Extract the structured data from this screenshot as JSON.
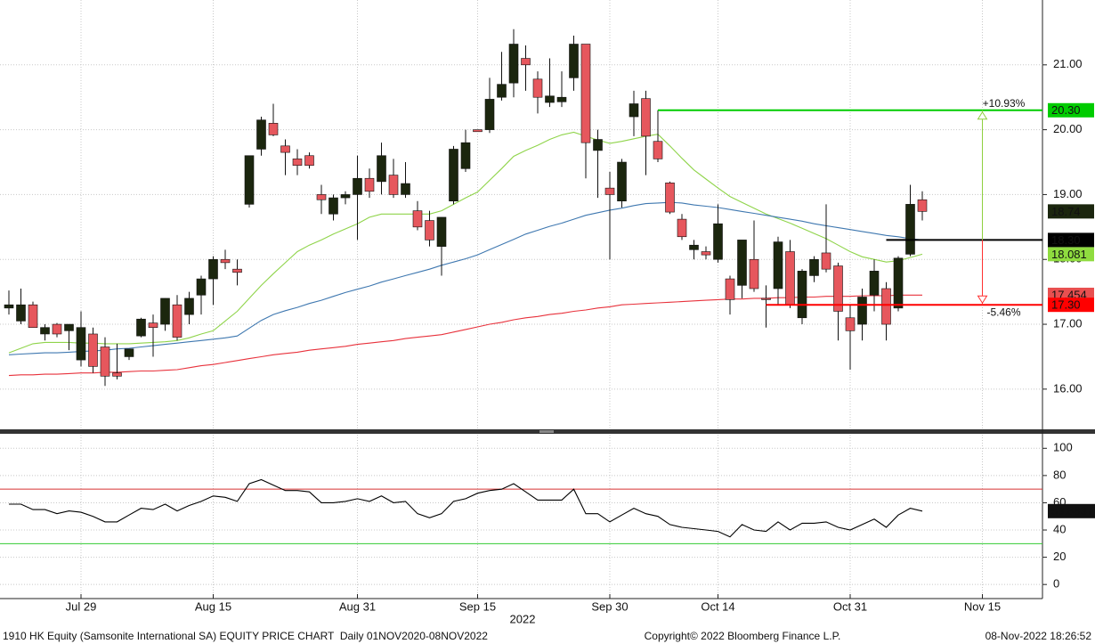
{
  "chart_data": [
    {
      "type": "candlestick",
      "x": [
        "2022-07-21",
        "2022-07-22",
        "2022-07-25",
        "2022-07-26",
        "2022-07-27",
        "2022-07-28",
        "2022-07-29",
        "2022-08-01",
        "2022-08-02",
        "2022-08-03",
        "2022-08-04",
        "2022-08-05",
        "2022-08-08",
        "2022-08-09",
        "2022-08-10",
        "2022-08-11",
        "2022-08-12",
        "2022-08-15",
        "2022-08-16",
        "2022-08-17",
        "2022-08-18",
        "2022-08-19",
        "2022-08-22",
        "2022-08-23",
        "2022-08-24",
        "2022-08-25",
        "2022-08-26",
        "2022-08-29",
        "2022-08-30",
        "2022-08-31",
        "2022-09-01",
        "2022-09-02",
        "2022-09-05",
        "2022-09-06",
        "2022-09-07",
        "2022-09-08",
        "2022-09-09",
        "2022-09-13",
        "2022-09-14",
        "2022-09-15",
        "2022-09-16",
        "2022-09-19",
        "2022-09-20",
        "2022-09-21",
        "2022-09-22",
        "2022-09-23",
        "2022-09-26",
        "2022-09-27",
        "2022-09-28",
        "2022-09-29",
        "2022-09-30",
        "2022-10-03",
        "2022-10-05",
        "2022-10-06",
        "2022-10-07",
        "2022-10-10",
        "2022-10-11",
        "2022-10-12",
        "2022-10-13",
        "2022-10-14",
        "2022-10-17",
        "2022-10-18",
        "2022-10-19",
        "2022-10-20",
        "2022-10-21",
        "2022-10-24",
        "2022-10-25",
        "2022-10-26",
        "2022-10-27",
        "2022-10-28",
        "2022-10-31",
        "2022-11-01",
        "2022-11-02",
        "2022-11-03",
        "2022-11-04",
        "2022-11-07",
        "2022-11-08"
      ],
      "open": [
        17.25,
        17.05,
        17.3,
        16.85,
        17.0,
        16.9,
        16.45,
        16.85,
        16.65,
        16.25,
        16.5,
        16.82,
        17.02,
        17.0,
        17.3,
        17.15,
        17.45,
        17.7,
        18.0,
        17.85,
        18.85,
        19.7,
        20.1,
        19.75,
        19.55,
        19.6,
        19.0,
        18.7,
        18.95,
        19.0,
        19.25,
        19.2,
        19.3,
        19.0,
        18.75,
        18.6,
        18.2,
        18.9,
        19.4,
        20.0,
        20.0,
        20.5,
        20.72,
        21.1,
        20.78,
        20.42,
        20.43,
        20.8,
        21.32,
        19.68,
        19.1,
        18.9,
        20.2,
        20.48,
        19.82,
        19.18,
        18.62,
        18.15,
        18.12,
        18.0,
        17.7,
        17.6,
        18.0,
        17.4,
        17.55,
        18.12,
        17.1,
        17.75,
        18.1,
        17.9,
        17.1,
        17.0,
        17.45,
        17.55,
        17.25,
        18.08,
        18.92
      ],
      "high": [
        17.52,
        17.55,
        17.35,
        17.0,
        17.02,
        17.0,
        17.2,
        16.95,
        16.8,
        16.7,
        16.6,
        17.1,
        17.15,
        17.4,
        17.45,
        17.5,
        17.75,
        18.05,
        18.15,
        18.0,
        19.6,
        20.2,
        20.4,
        19.85,
        19.7,
        19.65,
        19.15,
        19.0,
        19.05,
        19.6,
        19.4,
        19.8,
        19.55,
        19.5,
        18.9,
        18.75,
        18.65,
        19.75,
        20.0,
        20.0,
        20.8,
        21.2,
        21.55,
        21.3,
        20.9,
        21.1,
        20.9,
        21.45,
        21.32,
        20.0,
        19.35,
        19.55,
        20.6,
        20.6,
        20.3,
        19.2,
        18.7,
        18.3,
        18.2,
        18.85,
        17.75,
        18.25,
        18.6,
        17.6,
        18.35,
        18.3,
        17.85,
        18.05,
        18.85,
        17.95,
        17.3,
        17.55,
        18.0,
        17.65,
        18.05,
        19.15,
        19.05
      ],
      "low": [
        17.15,
        17.0,
        16.95,
        16.75,
        16.8,
        16.6,
        16.35,
        16.25,
        16.05,
        16.15,
        16.45,
        16.8,
        16.5,
        16.9,
        16.75,
        17.0,
        17.15,
        17.3,
        17.85,
        17.6,
        18.8,
        19.6,
        19.9,
        19.3,
        19.3,
        19.4,
        18.7,
        18.6,
        18.85,
        18.3,
        18.95,
        19.0,
        18.95,
        18.95,
        18.45,
        18.2,
        17.75,
        18.85,
        19.35,
        19.97,
        19.95,
        20.45,
        20.5,
        20.6,
        20.25,
        20.35,
        20.35,
        20.6,
        19.25,
        18.95,
        18.0,
        18.8,
        19.9,
        19.3,
        19.5,
        18.7,
        18.3,
        18.0,
        18.0,
        17.95,
        17.15,
        17.4,
        17.5,
        16.95,
        17.3,
        17.25,
        17.0,
        17.65,
        17.8,
        16.75,
        16.3,
        16.75,
        17.2,
        16.75,
        17.2,
        18.05,
        18.6
      ],
      "close": [
        17.3,
        17.3,
        16.95,
        16.95,
        16.85,
        17.0,
        16.95,
        16.35,
        16.2,
        16.2,
        16.62,
        17.08,
        16.95,
        17.4,
        16.8,
        17.4,
        17.7,
        18.0,
        17.95,
        17.8,
        19.6,
        20.15,
        19.92,
        19.65,
        19.45,
        19.45,
        18.92,
        18.95,
        19.0,
        19.25,
        19.05,
        19.6,
        19.0,
        19.17,
        18.5,
        18.3,
        18.65,
        19.7,
        19.8,
        19.97,
        20.47,
        20.7,
        21.32,
        21.0,
        20.5,
        20.52,
        20.5,
        21.32,
        19.8,
        19.85,
        19.0,
        19.5,
        20.4,
        19.9,
        19.55,
        18.73,
        18.35,
        18.22,
        18.07,
        18.55,
        17.38,
        18.3,
        17.55,
        17.38,
        18.27,
        17.3,
        17.82,
        18.0,
        17.85,
        17.2,
        16.9,
        17.42,
        17.82,
        17.0,
        18.02,
        18.85,
        18.74
      ],
      "up_color": "#1b260e",
      "down_color": "#e6575d",
      "series": [
        {
          "color": "#8fd44a",
          "values": [
            16.56,
            16.63,
            16.7,
            16.72,
            16.72,
            16.72,
            16.71,
            16.71,
            16.7,
            16.7,
            16.7,
            16.71,
            16.72,
            16.73,
            16.75,
            16.79,
            16.85,
            16.9,
            17.05,
            17.2,
            17.4,
            17.6,
            17.78,
            17.95,
            18.12,
            18.22,
            18.3,
            18.39,
            18.47,
            18.55,
            18.65,
            18.7,
            18.7,
            18.7,
            18.7,
            18.7,
            18.75,
            18.85,
            18.95,
            19.04,
            19.22,
            19.4,
            19.59,
            19.68,
            19.76,
            19.85,
            19.92,
            19.96,
            19.9,
            19.84,
            19.79,
            19.82,
            19.86,
            19.9,
            19.93,
            19.75,
            19.56,
            19.38,
            19.24,
            19.1,
            18.97,
            18.88,
            18.79,
            18.7,
            18.63,
            18.56,
            18.48,
            18.4,
            18.32,
            18.22,
            18.12,
            18.04,
            18.0,
            17.96,
            17.98,
            18.03,
            18.08
          ]
        },
        {
          "color": "#3f78b0",
          "values": [
            16.53,
            16.54,
            16.55,
            16.56,
            16.56,
            16.57,
            16.58,
            16.59,
            16.6,
            16.62,
            16.63,
            16.65,
            16.67,
            16.69,
            16.71,
            16.73,
            16.75,
            16.77,
            16.79,
            16.82,
            16.94,
            17.06,
            17.15,
            17.21,
            17.26,
            17.32,
            17.37,
            17.43,
            17.49,
            17.54,
            17.59,
            17.65,
            17.7,
            17.75,
            17.8,
            17.85,
            17.91,
            17.96,
            18.01,
            18.07,
            18.15,
            18.23,
            18.31,
            18.39,
            18.45,
            18.51,
            18.56,
            18.62,
            18.68,
            18.72,
            18.76,
            18.79,
            18.83,
            18.86,
            18.87,
            18.88,
            18.87,
            18.84,
            18.82,
            18.8,
            18.77,
            18.74,
            18.71,
            18.68,
            18.65,
            18.62,
            18.59,
            18.55,
            18.52,
            18.49,
            18.46,
            18.43,
            18.4,
            18.37,
            18.35,
            18.32,
            18.3
          ]
        },
        {
          "color": "#e8323c",
          "values": [
            16.21,
            16.22,
            16.22,
            16.23,
            16.23,
            16.24,
            16.25,
            16.25,
            16.26,
            16.26,
            16.27,
            16.28,
            16.28,
            16.29,
            16.3,
            16.33,
            16.36,
            16.38,
            16.41,
            16.44,
            16.47,
            16.5,
            16.53,
            16.55,
            16.57,
            16.6,
            16.62,
            16.64,
            16.66,
            16.69,
            16.71,
            16.73,
            16.75,
            16.78,
            16.8,
            16.82,
            16.84,
            16.88,
            16.92,
            16.96,
            17.0,
            17.03,
            17.07,
            17.1,
            17.12,
            17.15,
            17.17,
            17.2,
            17.22,
            17.25,
            17.27,
            17.3,
            17.31,
            17.32,
            17.33,
            17.34,
            17.35,
            17.36,
            17.37,
            17.38,
            17.39,
            17.39,
            17.4,
            17.4,
            17.41,
            17.41,
            17.42,
            17.42,
            17.43,
            17.43,
            17.43,
            17.44,
            17.44,
            17.44,
            17.45,
            17.45,
            17.45
          ]
        }
      ],
      "ylim": [
        15.38,
        22
      ],
      "yticks": [
        {
          "value": 16,
          "label": "16.00"
        },
        {
          "value": 17,
          "label": "17.00"
        },
        {
          "value": 18,
          "label": "18.00"
        },
        {
          "value": 19,
          "label": "19.00"
        },
        {
          "value": 20,
          "label": "20.00"
        },
        {
          "value": 21,
          "label": "21.00"
        }
      ],
      "xticks": [
        {
          "value": "2022-07-29",
          "label": "Jul 29"
        },
        {
          "value": "2022-08-15",
          "label": "Aug 15"
        },
        {
          "value": "2022-08-31",
          "label": "Aug 31"
        },
        {
          "value": "2022-09-15",
          "label": "Sep 15"
        },
        {
          "value": "2022-09-30",
          "label": "Sep 30"
        },
        {
          "value": "2022-10-14",
          "label": "Oct 14"
        },
        {
          "value": "2022-10-31",
          "label": "Oct 31"
        },
        {
          "value": "2022-11-15",
          "label": "Nov 15"
        }
      ],
      "xlabel": "2022",
      "grid": true,
      "levels": [
        {
          "value": 20.3,
          "color": "#00cc00",
          "from": "2022-10-07"
        },
        {
          "value": 18.3,
          "color": "#000000",
          "from": "2022-11-03"
        },
        {
          "value": 17.3,
          "color": "#ff0000",
          "from": "2022-10-20"
        }
      ],
      "annotations": [
        {
          "text": "+10.93%",
          "color": "#8fcf3f"
        },
        {
          "text": "-5.46%",
          "color": "#ff3030"
        }
      ],
      "price_labels": [
        {
          "value": 20.3,
          "label": "20.30",
          "color": "#00cc00",
          "text_color": "#000000"
        },
        {
          "value": 17.454,
          "label": "17.454",
          "color": "#e85050",
          "text_color": "#ffffff"
        },
        {
          "value": 17.3,
          "label": "17.30",
          "color": "#ff0000",
          "text_color": "#ffffff"
        },
        {
          "value": 18.081,
          "label": "18.081",
          "color": "#8fdc3f",
          "text_color": "#000000"
        },
        {
          "value": 18.3,
          "label": "18.30",
          "color": "#000000",
          "text_color": "#ffffff"
        },
        {
          "value": 18.74,
          "label": "18.74",
          "color": "#1b260e",
          "text_color": "#ffffff"
        }
      ]
    },
    {
      "type": "line",
      "series": [
        {
          "color": "#000000",
          "values": [
            59,
            59,
            55,
            55,
            52,
            54,
            53,
            50,
            46,
            46,
            51,
            56,
            55,
            59,
            54,
            58,
            61,
            65,
            64,
            61,
            74,
            77,
            73,
            69,
            69,
            68,
            60,
            60,
            61,
            63,
            61,
            65,
            60,
            61,
            52,
            49,
            52,
            61,
            63,
            67,
            69,
            70,
            74,
            68,
            62,
            62,
            62,
            70,
            52,
            52,
            46,
            51,
            56,
            52,
            50,
            44,
            42,
            41,
            40,
            39,
            35,
            44,
            40,
            39,
            46,
            40,
            45,
            45,
            46,
            42,
            40,
            44,
            48,
            42,
            51,
            56,
            53.8837
          ],
          "value_labels": {
            "76": "53.8837"
          }
        }
      ],
      "ylim": [
        -11,
        110
      ],
      "yticks": [
        0,
        20,
        40,
        60,
        80,
        100
      ],
      "levels": [
        {
          "value": 70,
          "color": "#d63030"
        },
        {
          "value": 30,
          "color": "#33cc33"
        }
      ]
    }
  ],
  "footer": {
    "left": "1910 HK Equity (Samsonite International SA) EQUITY PRICE CHART  Daily 01NOV2020-08NOV2022",
    "center": "Copyright© 2022 Bloomberg Finance L.P.",
    "right": "08-Nov-2022 18:26:52"
  }
}
